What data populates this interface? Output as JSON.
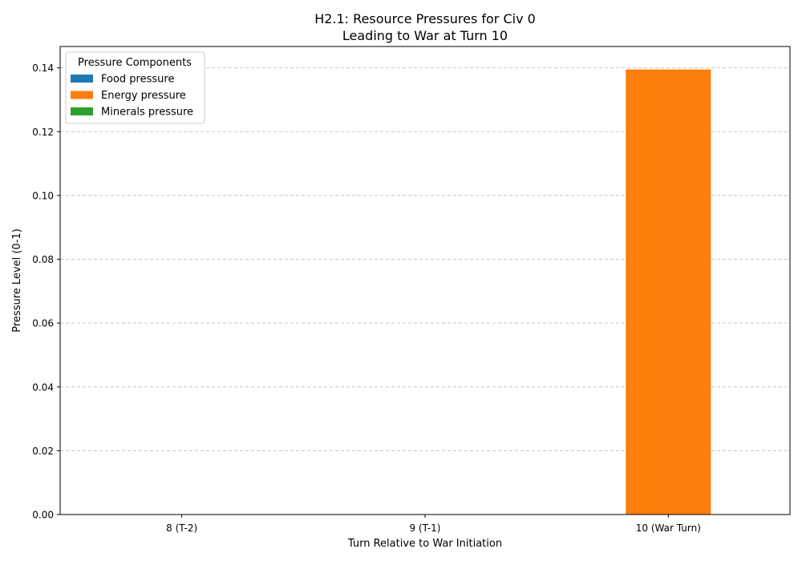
{
  "chart_data": {
    "type": "bar",
    "stacked": true,
    "title_line1": "H2.1: Resource Pressures for Civ 0",
    "title_line2": "Leading to War at Turn 10",
    "xlabel": "Turn Relative to War Initiation",
    "ylabel": "Pressure Level (0-1)",
    "categories": [
      "8 (T-2)",
      "9 (T-1)",
      "10 (War Turn)"
    ],
    "ylim": [
      0,
      0.1467
    ],
    "yticks": [
      "0.00",
      "0.02",
      "0.04",
      "0.06",
      "0.08",
      "0.10",
      "0.12",
      "0.14"
    ],
    "grid": "y-dashed",
    "legend": {
      "title": "Pressure Components",
      "placement": "top-left"
    },
    "series": [
      {
        "name": "Food pressure",
        "color": "#1f77b4",
        "values": [
          0,
          0,
          0
        ]
      },
      {
        "name": "Energy pressure",
        "color": "#ff7f0e",
        "values": [
          0,
          0,
          0.1395
        ]
      },
      {
        "name": "Minerals pressure",
        "color": "#2ca02c",
        "values": [
          0,
          0,
          0
        ]
      }
    ]
  }
}
